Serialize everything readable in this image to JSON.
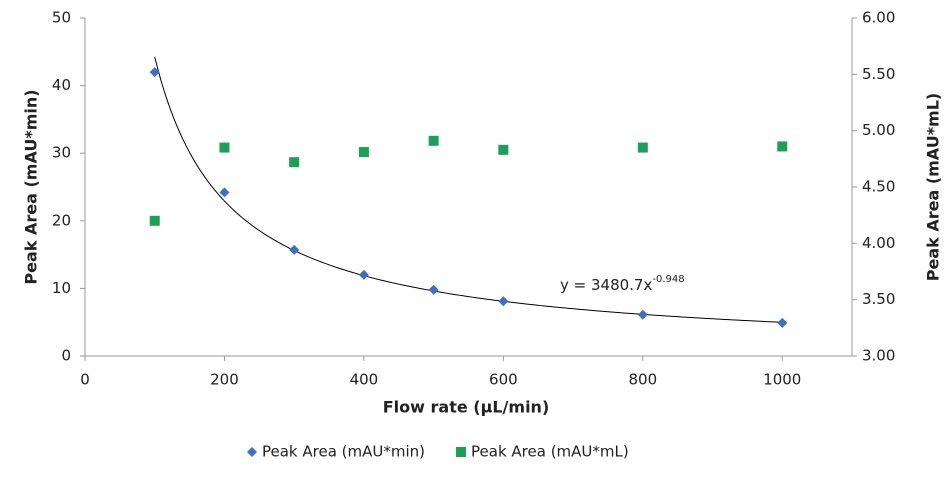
{
  "chart_data": {
    "type": "scatter",
    "x_label": "Flow rate (µL/min)",
    "y_label": "Peak Area (mAU*min)",
    "y2_label": "Peak Area (mAU*mL)",
    "x": [
      100,
      200,
      300,
      400,
      500,
      600,
      800,
      1000
    ],
    "series": [
      {
        "name": "Peak Area (mAU*min)",
        "color": "#3f6fbf",
        "marker": "diamond",
        "values": [
          42,
          24.2,
          15.7,
          12,
          9.8,
          8.1,
          6.1,
          4.9
        ]
      },
      {
        "name": "Peak Area (mAU*mL)",
        "color": "#1f9e5a",
        "marker": "square",
        "axis": "y2",
        "values": [
          4.2,
          4.85,
          4.72,
          4.81,
          4.91,
          4.83,
          4.85,
          4.86
        ]
      }
    ],
    "trendline": {
      "label": "y = 3480.7x",
      "exponent_label": "-0.948",
      "coefficient": 3480.7,
      "exponent": -0.948
    },
    "xlim": [
      0,
      1100
    ],
    "xticks": [
      0,
      200,
      400,
      600,
      800,
      1000
    ],
    "ylim": [
      0,
      50
    ],
    "yticks": [
      0,
      10,
      20,
      30,
      40,
      50
    ],
    "y2lim": [
      3,
      6
    ],
    "y2ticks": [
      {
        "value": 3,
        "label": "3.00"
      },
      {
        "value": 3.5,
        "label": "3.50"
      },
      {
        "value": 4,
        "label": "4.00"
      },
      {
        "value": 4.5,
        "label": "4.50"
      },
      {
        "value": 5,
        "label": "5.00"
      },
      {
        "value": 5.5,
        "label": "5.50"
      },
      {
        "value": 6,
        "label": "6.00"
      }
    ],
    "grid": false,
    "legend": "bottom"
  }
}
